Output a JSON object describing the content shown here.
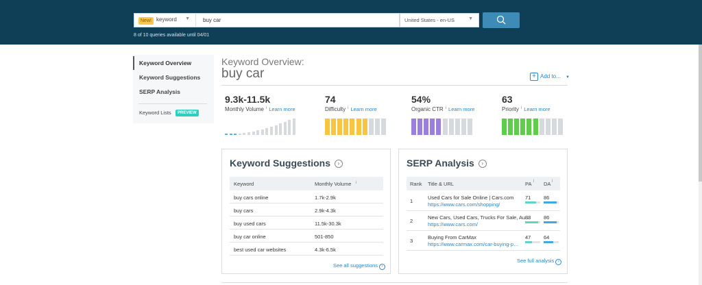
{
  "header": {
    "mode_badge": "New!",
    "mode_label": "keyword",
    "search_value": "buy car",
    "locale": "United States - en-US",
    "quota_text": "8 of 10 queries available until 04/01"
  },
  "sidebar": {
    "items": [
      {
        "label": "Keyword Overview"
      },
      {
        "label": "Keyword Suggestions"
      },
      {
        "label": "SERP Analysis"
      }
    ],
    "keyword_lists": "Keyword Lists",
    "preview_badge": "PREVIEW"
  },
  "overview": {
    "heading": "Keyword Overview:",
    "keyword": "buy car",
    "add_to": "Add to..."
  },
  "metrics": [
    {
      "value": "9.3k-11.5k",
      "label": "Monthly Volume",
      "learn": "Learn more",
      "color": "#4fb3e6",
      "bars": [
        0.05,
        0.06,
        0.08,
        0.1,
        0.14,
        0.18,
        0.22,
        0.28,
        0.34,
        0.42,
        0.5,
        0.6,
        0.7,
        0.8,
        0.92,
        1.0
      ]
    },
    {
      "value": "74",
      "label": "Difficulty",
      "learn": "Learn more",
      "color": "#f7c541",
      "filled": 7,
      "total": 10
    },
    {
      "value": "54%",
      "label": "Organic CTR",
      "learn": "Learn more",
      "color": "#9b7fdc",
      "filled": 5,
      "total": 10
    },
    {
      "value": "63",
      "label": "Priority",
      "learn": "Learn more",
      "color": "#5fcc4c",
      "filled": 6,
      "total": 10
    }
  ],
  "suggestions": {
    "title": "Keyword Suggestions",
    "col_keyword": "Keyword",
    "col_volume": "Monthly Volume",
    "rows": [
      {
        "keyword": "buy cars online",
        "volume": "1.7k-2.9k"
      },
      {
        "keyword": "buy cars",
        "volume": "2.9k-4.3k"
      },
      {
        "keyword": "buy used cars",
        "volume": "11.5k-30.3k"
      },
      {
        "keyword": "buy car online",
        "volume": "501-850"
      },
      {
        "keyword": "best used car websites",
        "volume": "4.3k-6.5k"
      }
    ],
    "see_all": "See all suggestions"
  },
  "serp": {
    "title": "SERP Analysis",
    "col_rank": "Rank",
    "col_title": "Title & URL",
    "col_pa": "PA",
    "col_da": "DA",
    "pa_color": "#5fd4c6",
    "da_color": "#3ea9e0",
    "rows": [
      {
        "rank": "1",
        "title": "Used Cars for Sale Online | Cars.com",
        "url": "https://www.cars.com/shopping/",
        "pa": 71,
        "da": 86
      },
      {
        "rank": "2",
        "title": "New Cars, Used Cars, Trucks For Sale, Auto Reviews",
        "url": "https://www.cars.com/",
        "pa": 88,
        "da": 86
      },
      {
        "rank": "3",
        "title": "Buying From CarMax",
        "url": "https://www.carmax.com/car-buying-process",
        "pa": 47,
        "da": 64
      }
    ],
    "see_full": "See full analysis"
  }
}
